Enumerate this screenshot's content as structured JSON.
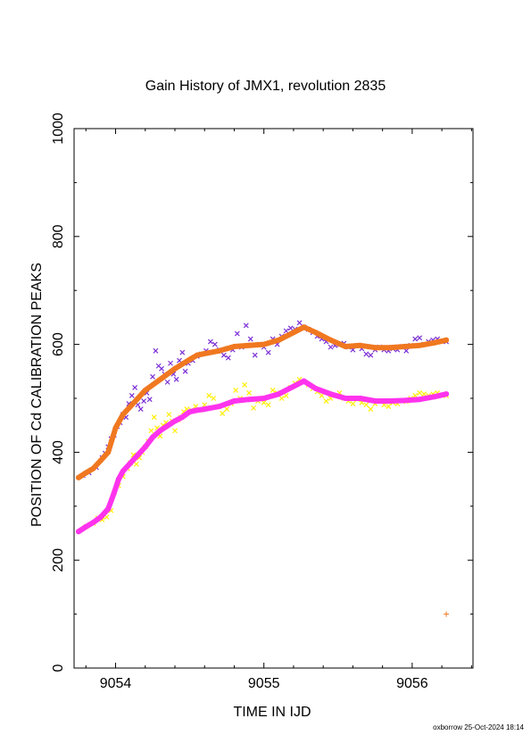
{
  "chart_data": {
    "type": "scatter",
    "title": "Gain History of JMX1, revolution 2835",
    "xlabel": "TIME IN IJD",
    "ylabel": "POSITION OF Cd CALIBRATION PEAKS",
    "xlim": [
      9053.72,
      9056.41
    ],
    "ylim": [
      0,
      1000
    ],
    "xticks": [
      9054,
      9055,
      9056
    ],
    "yticks": [
      0,
      200,
      400,
      600,
      800,
      1000
    ],
    "grid": false,
    "series": [
      {
        "marker": "x",
        "color": "#7b2fd6",
        "points": [
          [
            9053.78,
            357
          ],
          [
            9053.82,
            362
          ],
          [
            9053.87,
            372
          ],
          [
            9053.91,
            390
          ],
          [
            9053.93,
            398
          ],
          [
            9053.95,
            410
          ],
          [
            9053.97,
            425
          ],
          [
            9053.99,
            432
          ],
          [
            9054.01,
            448
          ],
          [
            9054.03,
            455
          ],
          [
            9054.05,
            470
          ],
          [
            9054.07,
            465
          ],
          [
            9054.09,
            490
          ],
          [
            9054.11,
            505
          ],
          [
            9054.13,
            520
          ],
          [
            9054.15,
            488
          ],
          [
            9054.17,
            480
          ],
          [
            9054.19,
            495
          ],
          [
            9054.21,
            510
          ],
          [
            9054.23,
            498
          ],
          [
            9054.25,
            540
          ],
          [
            9054.27,
            588
          ],
          [
            9054.29,
            560
          ],
          [
            9054.31,
            555
          ],
          [
            9054.33,
            545
          ],
          [
            9054.35,
            530
          ],
          [
            9054.37,
            565
          ],
          [
            9054.39,
            545
          ],
          [
            9054.41,
            535
          ],
          [
            9054.43,
            570
          ],
          [
            9054.45,
            585
          ],
          [
            9054.47,
            550
          ],
          [
            9054.49,
            565
          ],
          [
            9054.52,
            570
          ],
          [
            9054.55,
            578
          ],
          [
            9054.58,
            582
          ],
          [
            9054.61,
            588
          ],
          [
            9054.64,
            605
          ],
          [
            9054.67,
            600
          ],
          [
            9054.7,
            590
          ],
          [
            9054.73,
            580
          ],
          [
            9054.76,
            575
          ],
          [
            9054.79,
            590
          ],
          [
            9054.82,
            620
          ],
          [
            9054.85,
            595
          ],
          [
            9054.88,
            635
          ],
          [
            9054.91,
            610
          ],
          [
            9054.94,
            580
          ],
          [
            9054.97,
            600
          ],
          [
            9055.0,
            595
          ],
          [
            9055.03,
            585
          ],
          [
            9055.06,
            610
          ],
          [
            9055.09,
            600
          ],
          [
            9055.12,
            615
          ],
          [
            9055.15,
            625
          ],
          [
            9055.18,
            630
          ],
          [
            9055.21,
            628
          ],
          [
            9055.24,
            640
          ],
          [
            9055.27,
            632
          ],
          [
            9055.3,
            628
          ],
          [
            9055.33,
            622
          ],
          [
            9055.36,
            615
          ],
          [
            9055.39,
            610
          ],
          [
            9055.42,
            605
          ],
          [
            9055.45,
            595
          ],
          [
            9055.48,
            598
          ],
          [
            9055.51,
            600
          ],
          [
            9055.54,
            602
          ],
          [
            9055.57,
            595
          ],
          [
            9055.6,
            590
          ],
          [
            9055.63,
            598
          ],
          [
            9055.66,
            592
          ],
          [
            9055.69,
            582
          ],
          [
            9055.72,
            580
          ],
          [
            9055.75,
            590
          ],
          [
            9055.78,
            595
          ],
          [
            9055.81,
            590
          ],
          [
            9055.84,
            588
          ],
          [
            9055.87,
            592
          ],
          [
            9055.9,
            590
          ],
          [
            9055.93,
            596
          ],
          [
            9055.96,
            588
          ],
          [
            9055.99,
            598
          ],
          [
            9056.02,
            610
          ],
          [
            9056.05,
            612
          ],
          [
            9056.08,
            600
          ],
          [
            9056.11,
            605
          ],
          [
            9056.14,
            608
          ],
          [
            9056.17,
            610
          ],
          [
            9056.2,
            606
          ],
          [
            9056.23,
            605
          ]
        ]
      },
      {
        "marker": "x",
        "color": "#ffee00",
        "points": [
          [
            9053.8,
            262
          ],
          [
            9053.85,
            268
          ],
          [
            9053.88,
            278
          ],
          [
            9053.91,
            275
          ],
          [
            9053.94,
            280
          ],
          [
            9053.97,
            292
          ],
          [
            9053.99,
            325
          ],
          [
            9054.02,
            338
          ],
          [
            9054.05,
            355
          ],
          [
            9054.08,
            370
          ],
          [
            9054.1,
            380
          ],
          [
            9054.12,
            395
          ],
          [
            9054.14,
            378
          ],
          [
            9054.16,
            390
          ],
          [
            9054.18,
            400
          ],
          [
            9054.2,
            410
          ],
          [
            9054.22,
            420
          ],
          [
            9054.24,
            440
          ],
          [
            9054.26,
            465
          ],
          [
            9054.28,
            445
          ],
          [
            9054.3,
            430
          ],
          [
            9054.32,
            450
          ],
          [
            9054.34,
            455
          ],
          [
            9054.36,
            470
          ],
          [
            9054.38,
            458
          ],
          [
            9054.4,
            440
          ],
          [
            9054.42,
            460
          ],
          [
            9054.44,
            465
          ],
          [
            9054.46,
            475
          ],
          [
            9054.48,
            480
          ],
          [
            9054.51,
            478
          ],
          [
            9054.54,
            485
          ],
          [
            9054.57,
            478
          ],
          [
            9054.6,
            488
          ],
          [
            9054.63,
            505
          ],
          [
            9054.66,
            500
          ],
          [
            9054.69,
            485
          ],
          [
            9054.72,
            472
          ],
          [
            9054.75,
            480
          ],
          [
            9054.78,
            490
          ],
          [
            9054.81,
            515
          ],
          [
            9054.84,
            500
          ],
          [
            9054.87,
            525
          ],
          [
            9054.9,
            510
          ],
          [
            9054.93,
            482
          ],
          [
            9054.96,
            495
          ],
          [
            9055.0,
            492
          ],
          [
            9055.03,
            488
          ],
          [
            9055.06,
            515
          ],
          [
            9055.09,
            510
          ],
          [
            9055.12,
            500
          ],
          [
            9055.15,
            505
          ],
          [
            9055.18,
            520
          ],
          [
            9055.21,
            528
          ],
          [
            9055.24,
            535
          ],
          [
            9055.27,
            530
          ],
          [
            9055.3,
            525
          ],
          [
            9055.33,
            518
          ],
          [
            9055.36,
            512
          ],
          [
            9055.39,
            505
          ],
          [
            9055.42,
            495
          ],
          [
            9055.45,
            500
          ],
          [
            9055.48,
            505
          ],
          [
            9055.51,
            510
          ],
          [
            9055.54,
            500
          ],
          [
            9055.57,
            495
          ],
          [
            9055.6,
            490
          ],
          [
            9055.63,
            498
          ],
          [
            9055.66,
            492
          ],
          [
            9055.69,
            488
          ],
          [
            9055.72,
            480
          ],
          [
            9055.75,
            490
          ],
          [
            9055.78,
            495
          ],
          [
            9055.81,
            488
          ],
          [
            9055.84,
            485
          ],
          [
            9055.87,
            492
          ],
          [
            9055.9,
            490
          ],
          [
            9055.93,
            496
          ],
          [
            9055.96,
            494
          ],
          [
            9055.99,
            500
          ],
          [
            9056.02,
            505
          ],
          [
            9056.05,
            510
          ],
          [
            9056.08,
            508
          ],
          [
            9056.11,
            505
          ],
          [
            9056.14,
            508
          ],
          [
            9056.17,
            510
          ],
          [
            9056.2,
            506
          ],
          [
            9056.23,
            505
          ]
        ]
      },
      {
        "marker": "line",
        "color": "#f07820",
        "points": [
          [
            9053.75,
            353
          ],
          [
            9053.8,
            362
          ],
          [
            9053.85,
            370
          ],
          [
            9053.9,
            385
          ],
          [
            9053.95,
            400
          ],
          [
            9054.0,
            445
          ],
          [
            9054.05,
            470
          ],
          [
            9054.1,
            485
          ],
          [
            9054.15,
            500
          ],
          [
            9054.2,
            515
          ],
          [
            9054.3,
            535
          ],
          [
            9054.4,
            555
          ],
          [
            9054.5,
            572
          ],
          [
            9054.55,
            580
          ],
          [
            9054.6,
            583
          ],
          [
            9054.7,
            588
          ],
          [
            9054.8,
            596
          ],
          [
            9054.9,
            598
          ],
          [
            9055.0,
            600
          ],
          [
            9055.1,
            608
          ],
          [
            9055.2,
            622
          ],
          [
            9055.27,
            632
          ],
          [
            9055.35,
            622
          ],
          [
            9055.45,
            608
          ],
          [
            9055.55,
            596
          ],
          [
            9055.65,
            598
          ],
          [
            9055.75,
            594
          ],
          [
            9055.85,
            594
          ],
          [
            9055.95,
            596
          ],
          [
            9056.05,
            598
          ],
          [
            9056.15,
            603
          ],
          [
            9056.23,
            608
          ]
        ]
      },
      {
        "marker": "line",
        "color": "#ff33ee",
        "points": [
          [
            9053.75,
            253
          ],
          [
            9053.8,
            262
          ],
          [
            9053.85,
            270
          ],
          [
            9053.9,
            280
          ],
          [
            9053.95,
            295
          ],
          [
            9053.99,
            325
          ],
          [
            9054.02,
            350
          ],
          [
            9054.05,
            365
          ],
          [
            9054.1,
            380
          ],
          [
            9054.15,
            395
          ],
          [
            9054.2,
            410
          ],
          [
            9054.25,
            428
          ],
          [
            9054.3,
            440
          ],
          [
            9054.4,
            458
          ],
          [
            9054.45,
            465
          ],
          [
            9054.5,
            475
          ],
          [
            9054.55,
            478
          ],
          [
            9054.6,
            480
          ],
          [
            9054.7,
            485
          ],
          [
            9054.8,
            495
          ],
          [
            9054.9,
            498
          ],
          [
            9055.0,
            500
          ],
          [
            9055.1,
            508
          ],
          [
            9055.2,
            522
          ],
          [
            9055.27,
            532
          ],
          [
            9055.35,
            518
          ],
          [
            9055.45,
            508
          ],
          [
            9055.55,
            500
          ],
          [
            9055.65,
            500
          ],
          [
            9055.75,
            495
          ],
          [
            9055.85,
            495
          ],
          [
            9055.95,
            496
          ],
          [
            9056.05,
            498
          ],
          [
            9056.15,
            503
          ],
          [
            9056.23,
            508
          ]
        ]
      },
      {
        "marker": "+",
        "color": "#f07820",
        "points": [
          [
            9056.23,
            100
          ]
        ]
      }
    ]
  },
  "footer": "oxborrow 25-Oct-2024 18:14"
}
